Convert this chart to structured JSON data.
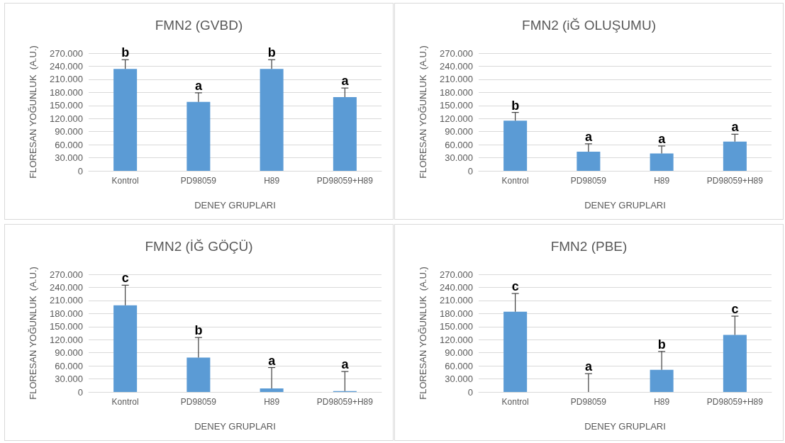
{
  "chart_data": [
    {
      "type": "bar",
      "title": "FMN2 (GVBD)",
      "xlabel": "DENEY GRUPLARI",
      "ylabel": "FLORESAN YOĞUNLUK  (A.U.)",
      "categories": [
        "Kontrol",
        "PD98059",
        "H89",
        "PD98059+H89"
      ],
      "color": "#5b9bd5",
      "values": [
        234000,
        158000,
        234000,
        169000
      ],
      "errors": [
        [
          234000,
          255000
        ],
        [
          158000,
          179000
        ],
        [
          234000,
          255000
        ],
        [
          169000,
          190000
        ]
      ],
      "ylim": [
        0,
        270000
      ],
      "yticks": [
        {
          "value": 0,
          "label": "0"
        },
        {
          "value": 30000,
          "label": "30.000"
        },
        {
          "value": 60000,
          "label": "60.000"
        },
        {
          "value": 90000,
          "label": "90.000"
        },
        {
          "value": 120000,
          "label": "120.000"
        },
        {
          "value": 150000,
          "label": "150.000"
        },
        {
          "value": 180000,
          "label": "180.000"
        },
        {
          "value": 210000,
          "label": "210.000"
        },
        {
          "value": 240000,
          "label": "240.000"
        },
        {
          "value": 270000,
          "label": "270.000"
        }
      ],
      "grid": "y",
      "annotations": [
        {
          "text": "b",
          "x": "Kontrol",
          "y": 255000
        },
        {
          "text": "a",
          "x": "PD98059",
          "y": 179000
        },
        {
          "text": "b",
          "x": "H89",
          "y": 255000
        },
        {
          "text": "a",
          "x": "PD98059+H89",
          "y": 190000
        }
      ]
    },
    {
      "type": "bar",
      "title": "FMN2 (iĞ OLUŞUMU)",
      "xlabel": "DENEY GRUPLARI",
      "ylabel": "FLORESAN YOĞUNLUK  (A.U.)",
      "categories": [
        "Kontrol",
        "PD98059",
        "H89",
        "PD98059+H89"
      ],
      "color": "#5b9bd5",
      "values": [
        115000,
        44000,
        40000,
        67000
      ],
      "errors": [
        [
          115000,
          134000
        ],
        [
          44000,
          62000
        ],
        [
          40000,
          57000
        ],
        [
          67000,
          84000
        ]
      ],
      "ylim": [
        0,
        270000
      ],
      "yticks": [
        {
          "value": 0,
          "label": "0"
        },
        {
          "value": 30000,
          "label": "30.000"
        },
        {
          "value": 60000,
          "label": "60.000"
        },
        {
          "value": 90000,
          "label": "90.000"
        },
        {
          "value": 120000,
          "label": "120.000"
        },
        {
          "value": 150000,
          "label": "150.000"
        },
        {
          "value": 180000,
          "label": "180.000"
        },
        {
          "value": 210000,
          "label": "210.000"
        },
        {
          "value": 240000,
          "label": "240.000"
        },
        {
          "value": 270000,
          "label": "270.000"
        }
      ],
      "grid": "y",
      "annotations": [
        {
          "text": "b",
          "x": "Kontrol",
          "y": 134000
        },
        {
          "text": "a",
          "x": "PD98059",
          "y": 62000
        },
        {
          "text": "a",
          "x": "H89",
          "y": 57000
        },
        {
          "text": "a",
          "x": "PD98059+H89",
          "y": 84000
        }
      ]
    },
    {
      "type": "bar",
      "title": "FMN2 (İĞ GÖÇÜ)",
      "xlabel": "DENEY GRUPLARI",
      "ylabel": "FLORESAN YOĞUNLUK  (A.U.)",
      "categories": [
        "Kontrol",
        "PD98059",
        "H89",
        "PD98059+H89"
      ],
      "color": "#5b9bd5",
      "values": [
        199000,
        79000,
        8000,
        2000
      ],
      "errors": [
        [
          199000,
          245000
        ],
        [
          79000,
          125000
        ],
        [
          8000,
          56000
        ],
        [
          2000,
          47000
        ]
      ],
      "ylim": [
        0,
        270000
      ],
      "yticks": [
        {
          "value": 0,
          "label": "0"
        },
        {
          "value": 30000,
          "label": "30.000"
        },
        {
          "value": 60000,
          "label": "60.000"
        },
        {
          "value": 90000,
          "label": "90.000"
        },
        {
          "value": 120000,
          "label": "120.000"
        },
        {
          "value": 150000,
          "label": "150.000"
        },
        {
          "value": 180000,
          "label": "180.000"
        },
        {
          "value": 210000,
          "label": "210.000"
        },
        {
          "value": 240000,
          "label": "240.000"
        },
        {
          "value": 270000,
          "label": "270.000"
        }
      ],
      "grid": "y",
      "annotations": [
        {
          "text": "c",
          "x": "Kontrol",
          "y": 245000
        },
        {
          "text": "b",
          "x": "PD98059",
          "y": 125000
        },
        {
          "text": "a",
          "x": "H89",
          "y": 56000
        },
        {
          "text": "a",
          "x": "PD98059+H89",
          "y": 47000
        }
      ]
    },
    {
      "type": "bar",
      "title": "FMN2 (PBE)",
      "xlabel": "DENEY GRUPLARI",
      "ylabel": "FLORESAN YOĞUNLUK  (A.U.)",
      "categories": [
        "Kontrol",
        "PD98059",
        "H89",
        "PD98059+H89"
      ],
      "color": "#5b9bd5",
      "values": [
        184000,
        0,
        51000,
        131000
      ],
      "errors": [
        [
          184000,
          226000
        ],
        [
          0,
          42000
        ],
        [
          51000,
          93000
        ],
        [
          131000,
          174000
        ]
      ],
      "ylim": [
        0,
        270000
      ],
      "yticks": [
        {
          "value": 0,
          "label": "0"
        },
        {
          "value": 30000,
          "label": "30.000"
        },
        {
          "value": 60000,
          "label": "60.000"
        },
        {
          "value": 90000,
          "label": "90.000"
        },
        {
          "value": 120000,
          "label": "120.000"
        },
        {
          "value": 150000,
          "label": "150.000"
        },
        {
          "value": 180000,
          "label": "180.000"
        },
        {
          "value": 210000,
          "label": "210.000"
        },
        {
          "value": 240000,
          "label": "240.000"
        },
        {
          "value": 270000,
          "label": "270.000"
        }
      ],
      "grid": "y",
      "annotations": [
        {
          "text": "c",
          "x": "Kontrol",
          "y": 226000
        },
        {
          "text": "a",
          "x": "PD98059",
          "y": 42000
        },
        {
          "text": "b",
          "x": "H89",
          "y": 93000
        },
        {
          "text": "c",
          "x": "PD98059+H89",
          "y": 174000
        }
      ]
    }
  ]
}
